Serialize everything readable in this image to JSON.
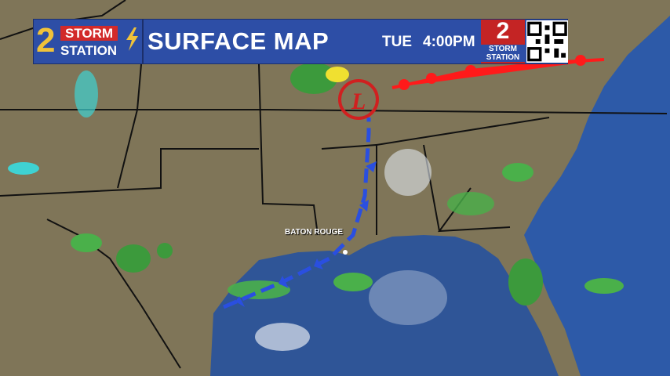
{
  "header": {
    "logo_number": "2",
    "logo_line1": "STORM",
    "logo_line2": "STATION",
    "title": "SURFACE MAP",
    "day": "TUE",
    "time": "4:00PM",
    "badge_number": "2",
    "badge_label": "STORM STATION"
  },
  "map": {
    "city_labels": [
      "BATON ROUGE"
    ],
    "low_pressure_symbol": "L",
    "fronts": [
      "cold-front",
      "warm-front"
    ],
    "colors": {
      "land": "#7f7558",
      "water": "#2f5597",
      "cold_front": "#2a4fe0",
      "warm_front": "#ff1a1a",
      "low": "#d02020",
      "header": "#2d4ea6"
    }
  }
}
